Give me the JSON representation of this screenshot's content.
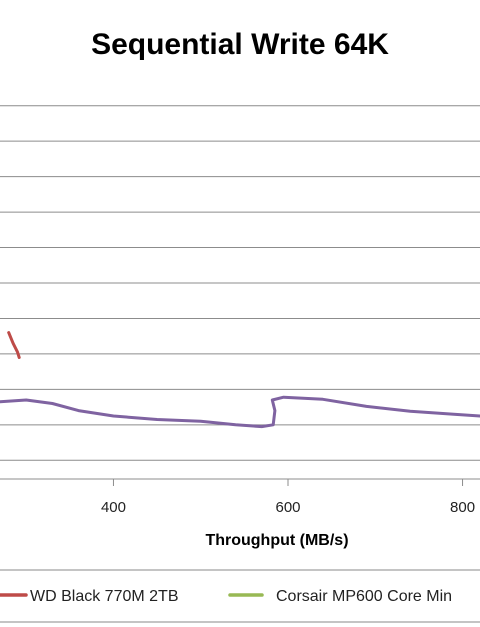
{
  "chart_data": {
    "type": "line",
    "title": "Sequential Write 64K",
    "xlabel": "Throughput  (MB/s)",
    "ylabel": "",
    "xlim": [
      270,
      820
    ],
    "ylim": [
      -0.5,
      10.5
    ],
    "x_ticks": [
      400,
      600,
      800
    ],
    "x_tick_labels": [
      "400",
      "600",
      "800"
    ],
    "y_gridlines": [
      0,
      1,
      2,
      3,
      4,
      5,
      6,
      7,
      8,
      9,
      10
    ],
    "grid": true,
    "legend_position": "bottom",
    "series": [
      {
        "name": "WD Black 770M 2TB",
        "color": "#be4b48",
        "points": [
          [
            280,
            3.6
          ],
          [
            285,
            3.3
          ],
          [
            290,
            3.05
          ],
          [
            292,
            2.9
          ]
        ]
      },
      {
        "name": "Corsair MP600 Core Min",
        "color": "#98b954",
        "points": []
      },
      {
        "name": "",
        "color": "#7f63a1",
        "points": [
          [
            270,
            1.65
          ],
          [
            300,
            1.7
          ],
          [
            330,
            1.6
          ],
          [
            360,
            1.4
          ],
          [
            400,
            1.25
          ],
          [
            450,
            1.15
          ],
          [
            500,
            1.1
          ],
          [
            540,
            1.0
          ],
          [
            570,
            0.95
          ],
          [
            583,
            1.0
          ],
          [
            585,
            1.4
          ],
          [
            582,
            1.7
          ],
          [
            595,
            1.78
          ],
          [
            640,
            1.72
          ],
          [
            690,
            1.52
          ],
          [
            740,
            1.38
          ],
          [
            790,
            1.3
          ],
          [
            820,
            1.25
          ]
        ]
      }
    ]
  }
}
